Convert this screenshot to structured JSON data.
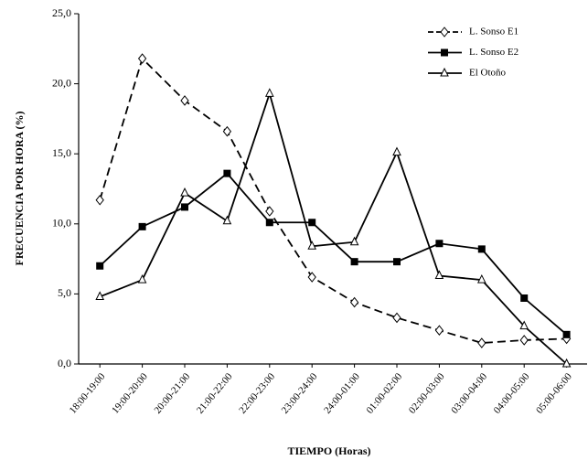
{
  "chart_data": {
    "type": "line",
    "x_label": "TIEMPO (Horas)",
    "y_label": "FRECUENCIA POR HORA (%)",
    "categories": [
      "18:00-19:00",
      "19:00-20:00",
      "20:00-21:00",
      "21:00-22:00",
      "22:00-23:00",
      "23:00-24:00",
      "24:00-01:00",
      "01:00-02:00",
      "02:00-03:00",
      "03:00-04:00",
      "04:00-05:00",
      "05:00-06:00"
    ],
    "series": [
      {
        "name": "L. Sonso E1",
        "color": "#000000",
        "dash": true,
        "marker": "diamond",
        "values": [
          11.7,
          21.8,
          18.8,
          16.6,
          10.9,
          6.2,
          4.4,
          3.3,
          2.4,
          1.5,
          1.7,
          1.8
        ]
      },
      {
        "name": "L. Sonso E2",
        "color": "#000000",
        "dash": false,
        "marker": "square",
        "values": [
          7.0,
          9.8,
          11.2,
          13.6,
          10.1,
          10.1,
          7.3,
          7.3,
          8.6,
          8.2,
          4.7,
          2.1
        ]
      },
      {
        "name": "El Otoño",
        "color": "#000000",
        "dash": false,
        "marker": "triangle",
        "values": [
          4.8,
          6.0,
          12.2,
          10.2,
          19.3,
          8.4,
          8.7,
          15.1,
          6.3,
          6.0,
          2.7,
          0.0
        ]
      }
    ],
    "ylim": [
      0,
      25
    ],
    "yticks": [
      {
        "value": 0,
        "label": "0,0"
      },
      {
        "value": 5,
        "label": "5,0"
      },
      {
        "value": 10,
        "label": "10,0"
      },
      {
        "value": 15,
        "label": "15,0"
      },
      {
        "value": 20,
        "label": "20,0"
      },
      {
        "value": 25,
        "label": "25,0"
      }
    ],
    "legend": "upper right",
    "grid": false
  }
}
